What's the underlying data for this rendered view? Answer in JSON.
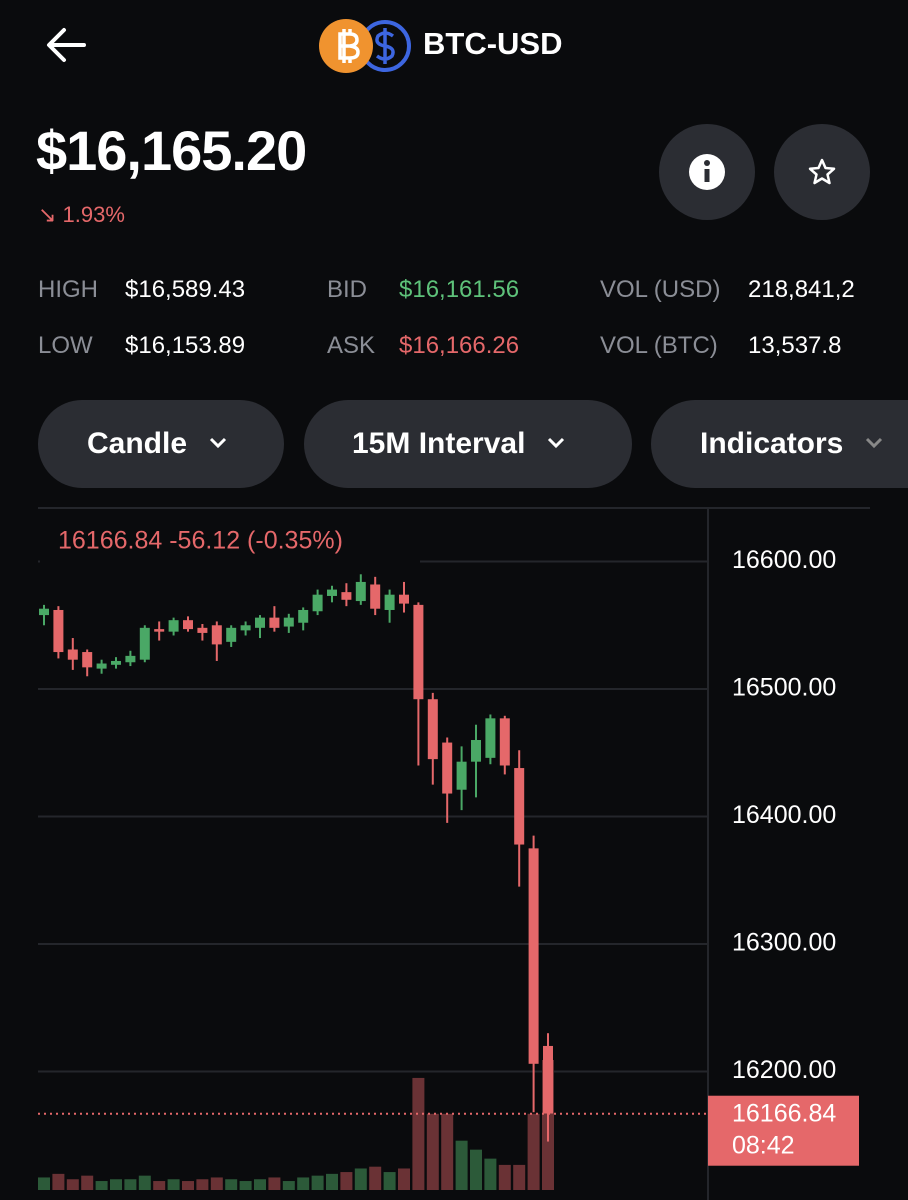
{
  "header": {
    "title": "BTC-USD"
  },
  "price": "$16,165.20",
  "change": "↘ 1.93%",
  "stats": [
    {
      "label": "HIGH",
      "value": "$16,589.43"
    },
    {
      "label": "LOW",
      "value": "$16,153.89"
    },
    {
      "label": "BID",
      "value": "$16,161.56"
    },
    {
      "label": "ASK",
      "value": "$16,166.26"
    },
    {
      "label": "VOL (USD)",
      "value": "218,841,2"
    },
    {
      "label": "VOL (BTC)",
      "value": "13,537.8"
    }
  ],
  "controls": [
    "Candle",
    "15M Interval",
    "Indicators"
  ],
  "chart_data": {
    "type": "candlestick",
    "legend_text": "16166.84 -56.12 (-0.35%)",
    "last_price": {
      "value": 16166.84,
      "label": "16166.84"
    },
    "countdown": "08:42",
    "ylim": [
      16107,
      16642
    ],
    "yticks": [
      {
        "value": 16600,
        "label": "16600.00"
      },
      {
        "value": 16500,
        "label": "16500.00"
      },
      {
        "value": 16400,
        "label": "16400.00"
      },
      {
        "value": 16300,
        "label": "16300.00"
      },
      {
        "value": 16200,
        "label": "16200.00"
      }
    ],
    "grid": true,
    "up_color": "#4aa866",
    "down_color": "#e5686a",
    "volume_up_color": "#2c5a39",
    "volume_down_color": "#6a3235",
    "open": [
      16558,
      16562,
      16531,
      16529,
      16516,
      16519,
      16521,
      16523,
      16547,
      16545,
      16554,
      16548,
      16550,
      16537,
      16546,
      16548,
      16556,
      16549,
      16552,
      16561,
      16573,
      16576,
      16569,
      16582,
      16562,
      16574,
      16566,
      16492,
      16458,
      16421,
      16443,
      16446,
      16477,
      16438,
      16375,
      16220
    ],
    "high": [
      16566,
      16565,
      16540,
      16531,
      16523,
      16525,
      16530,
      16550,
      16553,
      16556,
      16557,
      16551,
      16553,
      16550,
      16553,
      16558,
      16565,
      16559,
      16564,
      16578,
      16581,
      16583,
      16590,
      16588,
      16578,
      16584,
      16568,
      16497,
      16462,
      16455,
      16472,
      16480,
      16479,
      16452,
      16385,
      16230
    ],
    "low": [
      16550,
      16524,
      16515,
      16510,
      16512,
      16516,
      16518,
      16521,
      16538,
      16542,
      16545,
      16538,
      16522,
      16533,
      16542,
      16540,
      16545,
      16544,
      16546,
      16558,
      16568,
      16565,
      16566,
      16558,
      16552,
      16560,
      16440,
      16425,
      16395,
      16405,
      16415,
      16441,
      16433,
      16345,
      16168,
      16145
    ],
    "close": [
      16563,
      16529,
      16523,
      16517,
      16520,
      16522,
      16526,
      16548,
      16545,
      16554,
      16547,
      16544,
      16535,
      16548,
      16550,
      16556,
      16548,
      16556,
      16562,
      16574,
      16578,
      16570,
      16584,
      16563,
      16574,
      16567,
      16492,
      16445,
      16418,
      16443,
      16460,
      16477,
      16440,
      16378,
      16206,
      16167
    ],
    "volume": [
      14,
      18,
      12,
      16,
      10,
      12,
      12,
      16,
      10,
      12,
      10,
      12,
      14,
      12,
      10,
      12,
      14,
      10,
      14,
      16,
      18,
      20,
      24,
      26,
      20,
      24,
      125,
      85,
      85,
      55,
      45,
      35,
      28,
      28,
      85,
      145
    ]
  }
}
